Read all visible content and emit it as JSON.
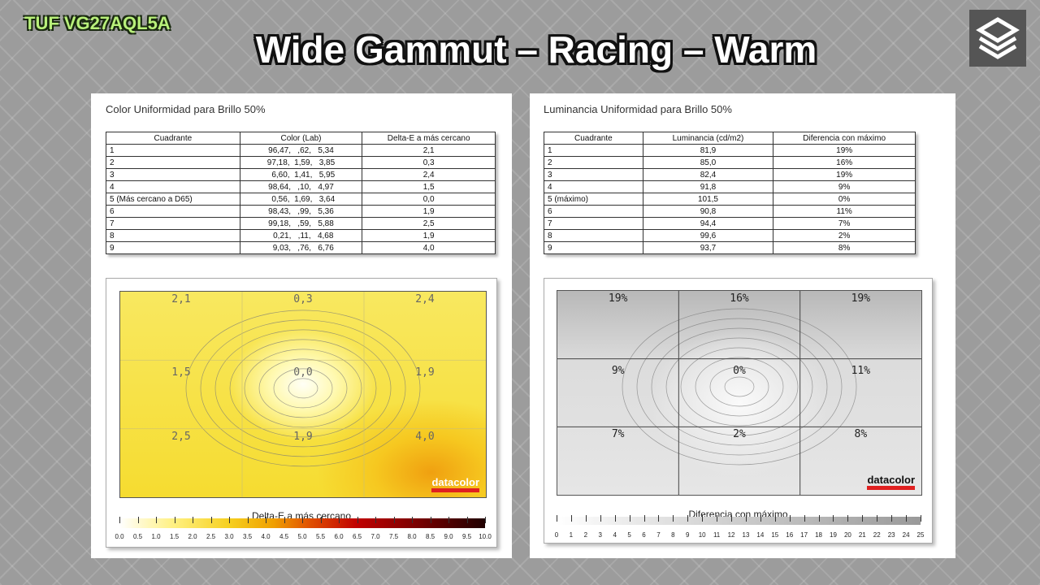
{
  "header": {
    "brand": "TUF VG27AQL5A",
    "title": "Wide Gammut – Racing – Warm"
  },
  "left": {
    "title": "Color Uniformidad para Brillo 50%",
    "table": {
      "columns": [
        "Cuadrante",
        "Color (Lab)",
        "Delta-E a más cercano"
      ],
      "rows": [
        [
          "1",
          "96,47,   ,62,   5,34",
          "2,1"
        ],
        [
          "2",
          "97,18,  1,59,   3,85",
          "0,3"
        ],
        [
          "3",
          "  6,60,  1,41,   5,95",
          "2,4"
        ],
        [
          "4",
          "98,64,   ,10,   4,97",
          "1,5"
        ],
        [
          "5 (Más cercano a D65)",
          "  0,56,  1,69,   3,64",
          "0,0"
        ],
        [
          "6",
          "98,43,   ,99,   5,36",
          "1,9"
        ],
        [
          "7",
          "99,18,   ,59,   5,88",
          "2,5"
        ],
        [
          "8",
          "  0,21,   ,11,   4,68",
          "1,9"
        ],
        [
          "9",
          "  9,03,   ,76,   6,76",
          "4,0"
        ]
      ]
    },
    "map": {
      "cells": [
        "2,1",
        "0,3",
        "2,4",
        "1,5",
        "0,0",
        "1,9",
        "2,5",
        "1,9",
        "4,0"
      ],
      "logo": "datacolor",
      "legend_title": "Delta-E a más cercano",
      "scale": [
        "0.0",
        "0.5",
        "1.0",
        "1.5",
        "2.0",
        "2.5",
        "3.0",
        "3.5",
        "4.0",
        "4.5",
        "5.0",
        "5.5",
        "6.0",
        "6.5",
        "7.0",
        "7.5",
        "8.0",
        "8.5",
        "9.0",
        "9.5",
        "10.0"
      ]
    }
  },
  "right": {
    "title": "Luminancia Uniformidad para Brillo 50%",
    "table": {
      "columns": [
        "Cuadrante",
        "Luminancia (cd/m2)",
        "Diferencia con máximo"
      ],
      "rows": [
        [
          "1",
          "81,9",
          "19%"
        ],
        [
          "2",
          "85,0",
          "16%"
        ],
        [
          "3",
          "82,4",
          "19%"
        ],
        [
          "4",
          "91,8",
          "9%"
        ],
        [
          "5 (máximo)",
          "101,5",
          "0%"
        ],
        [
          "6",
          "90,8",
          "11%"
        ],
        [
          "7",
          "94,4",
          "7%"
        ],
        [
          "8",
          "99,6",
          "2%"
        ],
        [
          "9",
          "93,7",
          "8%"
        ]
      ]
    },
    "map": {
      "cells": [
        "19%",
        "16%",
        "19%",
        "9%",
        "0%",
        "11%",
        "7%",
        "2%",
        "8%"
      ],
      "logo": "datacolor",
      "legend_title": "Diferencia con máximo",
      "scale": [
        "0",
        "1",
        "2",
        "3",
        "4",
        "5",
        "6",
        "7",
        "8",
        "9",
        "10",
        "11",
        "12",
        "13",
        "14",
        "15",
        "16",
        "17",
        "18",
        "19",
        "20",
        "21",
        "22",
        "23",
        "24",
        "25"
      ]
    }
  }
}
